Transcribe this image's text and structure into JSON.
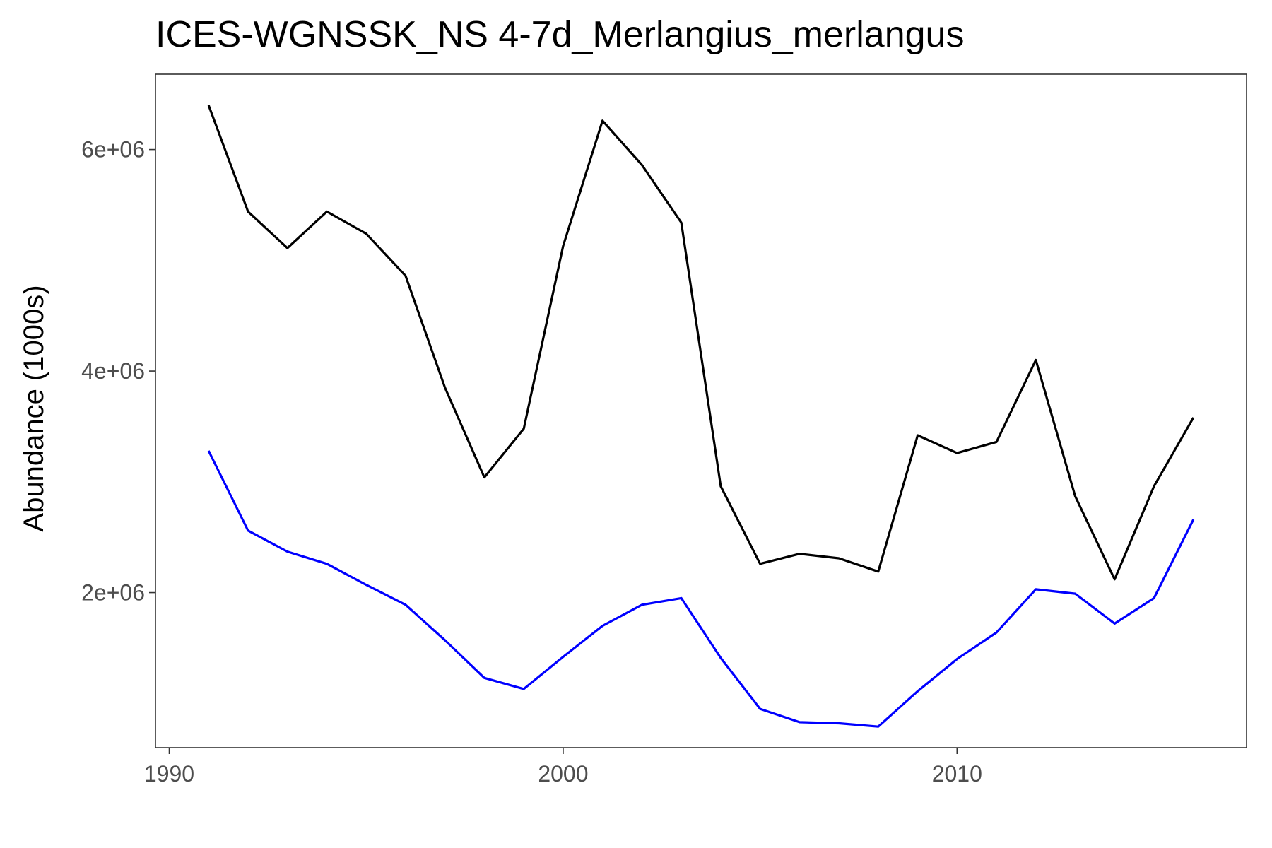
{
  "chart_data": {
    "type": "line",
    "title": "ICES-WGNSSK_NS 4-7d_Merlangius_merlangus",
    "xlabel": "",
    "ylabel": "Abundance (1000s)",
    "x": [
      1991,
      1992,
      1993,
      1994,
      1995,
      1996,
      1997,
      1998,
      1999,
      2000,
      2001,
      2002,
      2003,
      2004,
      2005,
      2006,
      2007,
      2008,
      2009,
      2010,
      2011,
      2012,
      2013,
      2014,
      2015,
      2016
    ],
    "series": [
      {
        "color": "#000000",
        "values": [
          6400000,
          5440000,
          5110000,
          5440000,
          5240000,
          4860000,
          3850000,
          3040000,
          3480000,
          5130000,
          6260000,
          5860000,
          5340000,
          2960000,
          2260000,
          2350000,
          2310000,
          2190000,
          3420000,
          3260000,
          3360000,
          4100000,
          2870000,
          2120000,
          2960000,
          3580000
        ]
      },
      {
        "color": "#0000ff",
        "values": [
          3280000,
          2560000,
          2370000,
          2260000,
          2070000,
          1890000,
          1570000,
          1230000,
          1130000,
          1420000,
          1700000,
          1890000,
          1950000,
          1410000,
          950000,
          830000,
          820000,
          790000,
          1110000,
          1400000,
          1640000,
          2030000,
          1990000,
          1720000,
          1950000,
          2660000
        ]
      }
    ],
    "xlim": [
      1989.65,
      2017.35
    ],
    "ylim": [
      600000,
      6680000
    ],
    "xticks": [
      1990,
      2000,
      2010
    ],
    "xtick_labels": [
      "1990",
      "2000",
      "2010"
    ],
    "yticks": [
      2000000,
      4000000,
      6000000
    ],
    "ytick_labels": [
      "2e+06",
      "4e+06",
      "6e+06"
    ],
    "grid": false,
    "legend": "none"
  }
}
